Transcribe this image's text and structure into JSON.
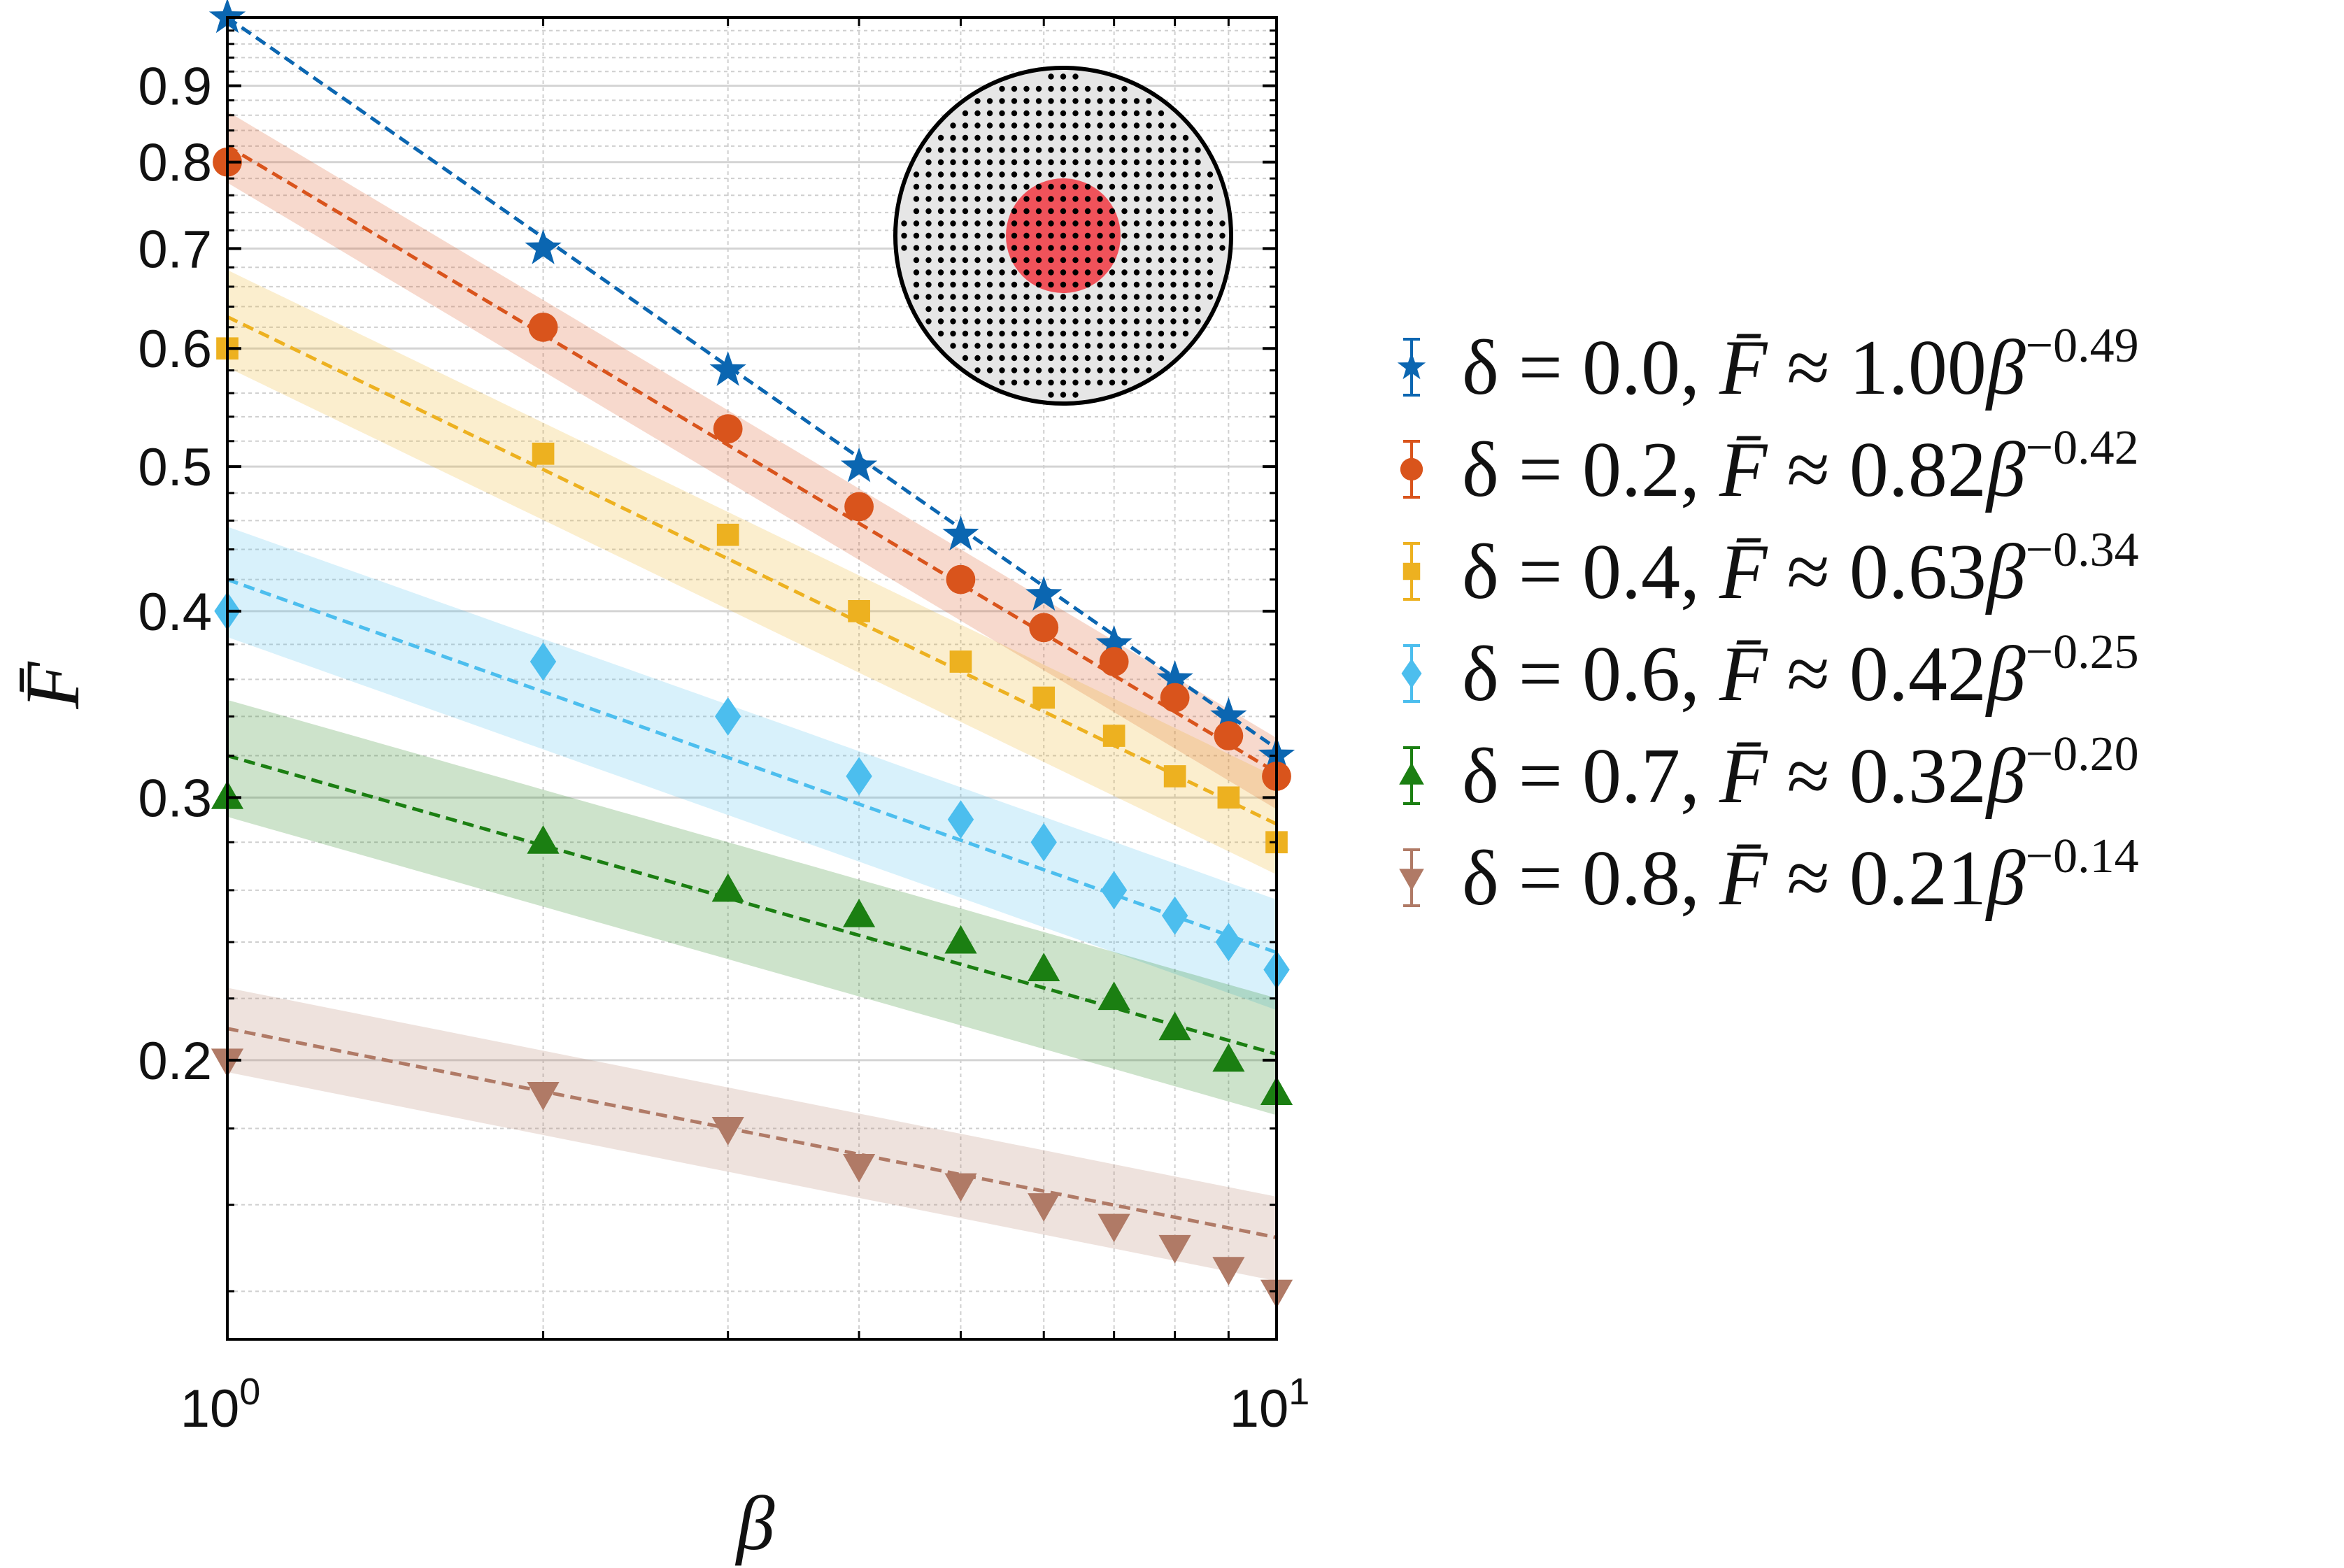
{
  "colors": {
    "series": [
      "#0b66b1",
      "#d9541c",
      "#edb120",
      "#4cbeee",
      "#1b7f12",
      "#b07a66"
    ],
    "inset_disk": "#e6e6e6",
    "inset_core": "#f0525a"
  },
  "chart_data": {
    "type": "scatter",
    "xscale": "log",
    "yscale": "log",
    "xlabel": "β",
    "ylabel": "F̄",
    "xlim": [
      1,
      10
    ],
    "ylim": [
      0.13,
      1.0
    ],
    "x_ticks": [
      {
        "value": 1,
        "base": "10",
        "exp": "0"
      },
      {
        "value": 10,
        "base": "10",
        "exp": "1"
      }
    ],
    "y_ticks": [
      {
        "value": 0.2,
        "label": "0.2"
      },
      {
        "value": 0.3,
        "label": "0.3"
      },
      {
        "value": 0.4,
        "label": "0.4"
      },
      {
        "value": 0.5,
        "label": "0.5"
      },
      {
        "value": 0.6,
        "label": "0.6"
      },
      {
        "value": 0.7,
        "label": "0.7"
      },
      {
        "value": 0.8,
        "label": "0.8"
      },
      {
        "value": 0.9,
        "label": "0.9"
      }
    ],
    "grid": true,
    "legend_position": "right",
    "x": [
      1,
      2,
      3,
      4,
      5,
      6,
      7,
      8,
      9,
      10
    ],
    "series": [
      {
        "name": "δ = 0.0",
        "marker": "star",
        "coef": "1.00",
        "exp": "−0.49",
        "fit_a": 1.0,
        "fit_b": -0.49,
        "band": 0.0,
        "values": [
          1.0,
          0.7,
          0.58,
          0.5,
          0.45,
          0.41,
          0.38,
          0.36,
          0.34,
          0.32
        ]
      },
      {
        "name": "δ = 0.2",
        "marker": "circle",
        "coef": "0.82",
        "exp": "−0.42",
        "fit_a": 0.82,
        "fit_b": -0.42,
        "band": 0.055,
        "values": [
          0.8,
          0.62,
          0.53,
          0.47,
          0.42,
          0.39,
          0.37,
          0.35,
          0.33,
          0.31
        ]
      },
      {
        "name": "δ = 0.4",
        "marker": "square",
        "coef": "0.63",
        "exp": "−0.34",
        "fit_a": 0.63,
        "fit_b": -0.34,
        "band": 0.075,
        "values": [
          0.6,
          0.51,
          0.45,
          0.4,
          0.37,
          0.35,
          0.33,
          0.31,
          0.3,
          0.28
        ]
      },
      {
        "name": "δ = 0.6",
        "marker": "diamond",
        "coef": "0.42",
        "exp": "−0.25",
        "fit_a": 0.42,
        "fit_b": -0.25,
        "band": 0.085,
        "values": [
          0.4,
          0.37,
          0.34,
          0.31,
          0.29,
          0.28,
          0.26,
          0.25,
          0.24,
          0.23
        ]
      },
      {
        "name": "δ = 0.7",
        "marker": "triangle-up",
        "coef": "0.32",
        "exp": "−0.20",
        "fit_a": 0.32,
        "fit_b": -0.2,
        "band": 0.09,
        "values": [
          0.3,
          0.28,
          0.26,
          0.25,
          0.24,
          0.23,
          0.22,
          0.21,
          0.2,
          0.19
        ]
      },
      {
        "name": "δ = 0.8",
        "marker": "triangle-down",
        "coef": "0.21",
        "exp": "−0.14",
        "fit_a": 0.21,
        "fit_b": -0.14,
        "band": 0.065,
        "values": [
          0.2,
          0.19,
          0.18,
          0.17,
          0.165,
          0.16,
          0.155,
          0.15,
          0.145,
          0.14
        ]
      }
    ]
  }
}
